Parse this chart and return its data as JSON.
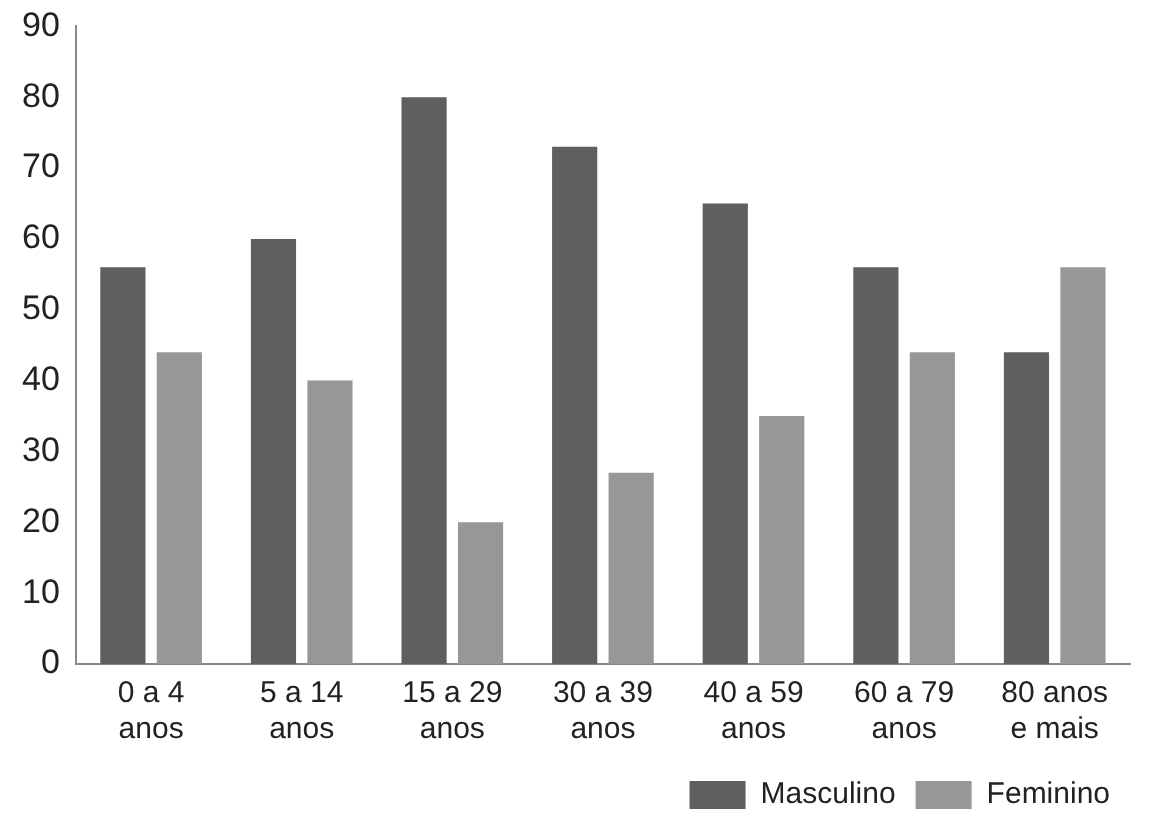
{
  "chart_data": {
    "type": "bar",
    "categories": [
      "0 a 4\nanos",
      "5 a 14\nanos",
      "15 a 29\nanos",
      "30 a 39\nanos",
      "40 a 59\nanos",
      "60 a 79\nanos",
      "80 anos\ne mais"
    ],
    "series": [
      {
        "name": "Masculino",
        "color": "#5f5f5f",
        "values": [
          56,
          60,
          80,
          73,
          65,
          56,
          44
        ]
      },
      {
        "name": "Feminino",
        "color": "#979797",
        "values": [
          44,
          40,
          20,
          27,
          35,
          44,
          56
        ]
      }
    ],
    "ylim": [
      0,
      90
    ],
    "yticks": [
      0,
      10,
      20,
      30,
      40,
      50,
      60,
      70,
      80,
      90
    ],
    "grid": false,
    "legend": "bottom right"
  }
}
